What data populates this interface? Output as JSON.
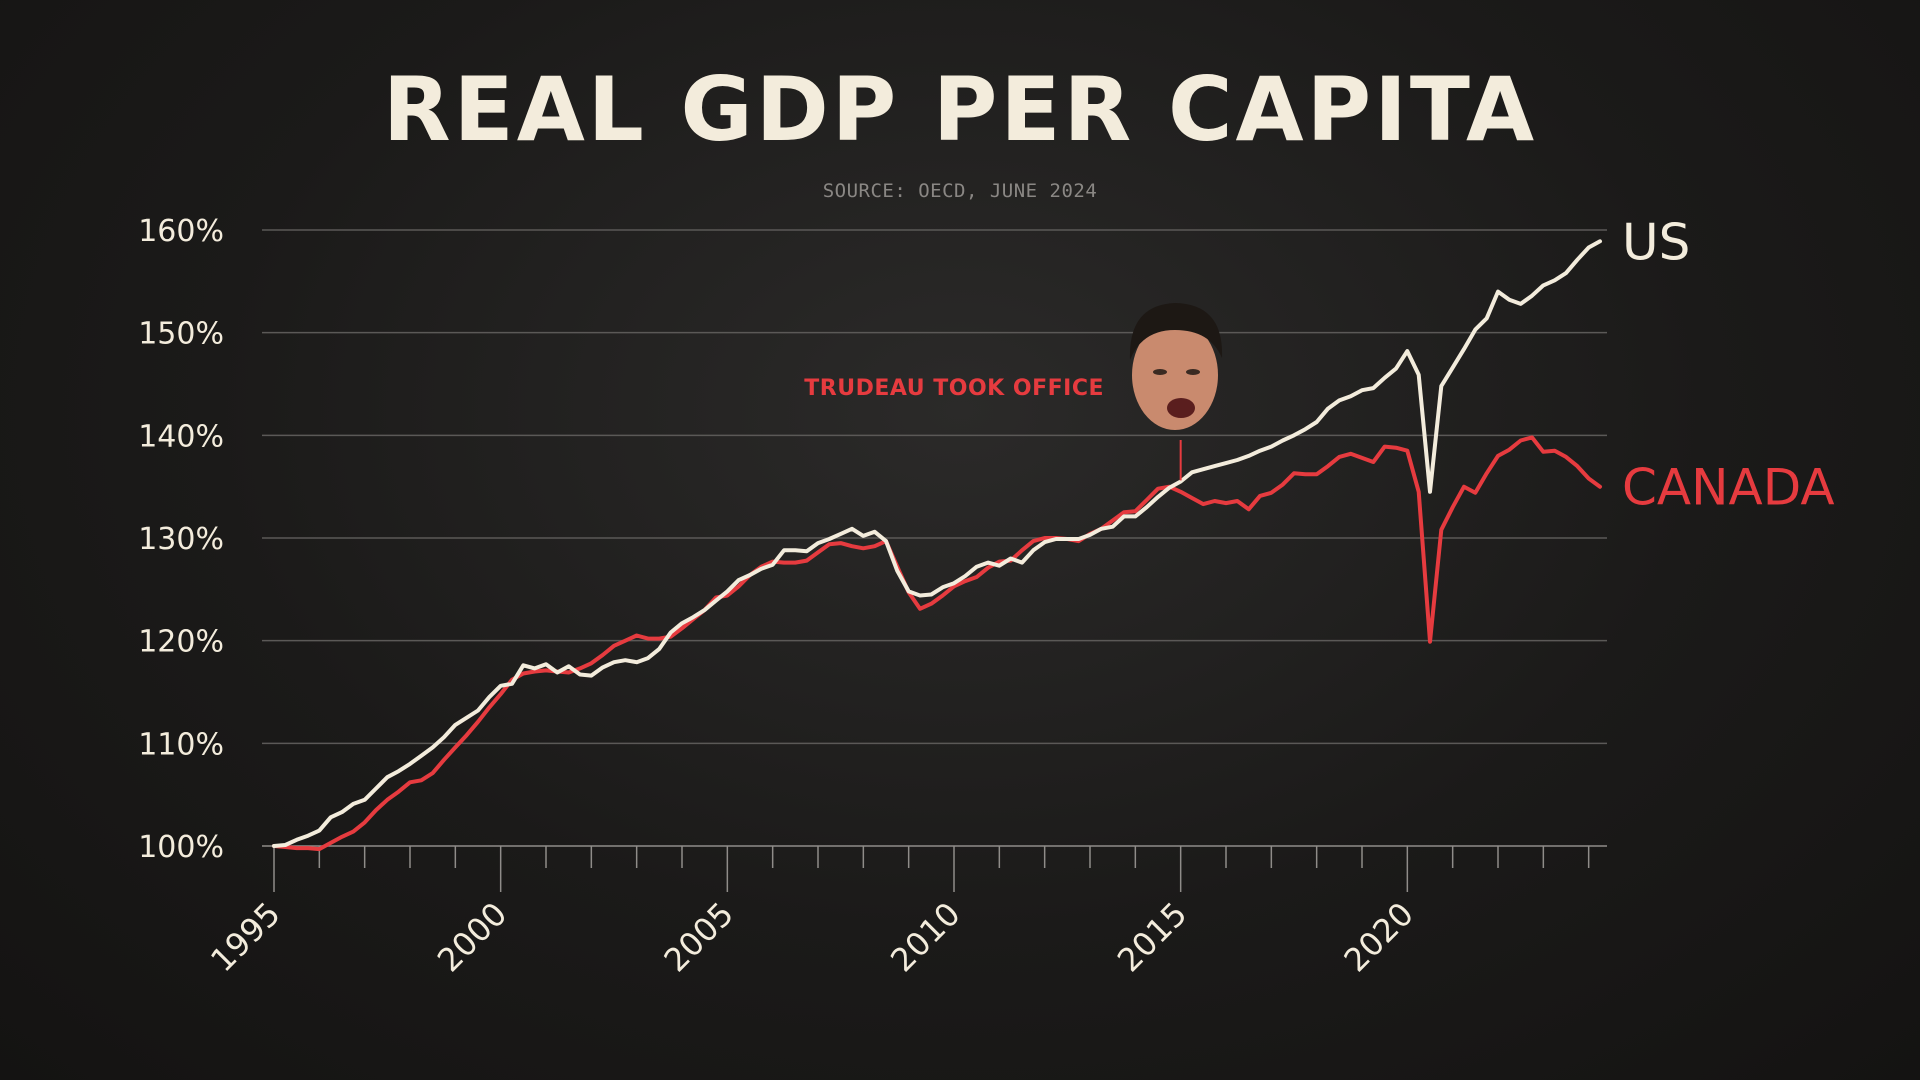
{
  "chart_data": {
    "type": "line",
    "title": "REAL GDP PER CAPITA",
    "subtitle": "SOURCE: OECD, JUNE 2024",
    "xlabel": "",
    "ylabel": "",
    "xlim": [
      1995,
      2024.25
    ],
    "ylim": [
      100,
      160
    ],
    "y_ticks": [
      100,
      110,
      120,
      130,
      140,
      150,
      160
    ],
    "y_tick_labels": [
      "100%",
      "110%",
      "120%",
      "130%",
      "140%",
      "150%",
      "160%"
    ],
    "x_ticks": [
      1995,
      2000,
      2005,
      2010,
      2015,
      2020
    ],
    "x_tick_labels": [
      "1995",
      "2000",
      "2005",
      "2010",
      "2015",
      "2020"
    ],
    "grid": true,
    "legend": "right, labels at line ends",
    "annotation": {
      "text": "TRUDEAU TOOK OFFICE",
      "x": 2015.0,
      "y": 136.0,
      "color": "#e63b3f"
    },
    "series": [
      {
        "name": "US",
        "color": "#f3ecdc",
        "points": [
          [
            1995.0,
            100.0
          ],
          [
            1995.25,
            100.1
          ],
          [
            1995.5,
            100.6
          ],
          [
            1995.75,
            101.0
          ],
          [
            1996.0,
            101.5
          ],
          [
            1996.25,
            102.8
          ],
          [
            1996.5,
            103.3
          ],
          [
            1996.75,
            104.1
          ],
          [
            1997.0,
            104.5
          ],
          [
            1997.25,
            105.6
          ],
          [
            1997.5,
            106.7
          ],
          [
            1997.75,
            107.3
          ],
          [
            1998.0,
            108.0
          ],
          [
            1998.25,
            108.8
          ],
          [
            1998.5,
            109.6
          ],
          [
            1998.75,
            110.6
          ],
          [
            1999.0,
            111.8
          ],
          [
            1999.25,
            112.5
          ],
          [
            1999.5,
            113.2
          ],
          [
            1999.75,
            114.5
          ],
          [
            2000.0,
            115.6
          ],
          [
            2000.25,
            115.8
          ],
          [
            2000.5,
            117.6
          ],
          [
            2000.75,
            117.3
          ],
          [
            2001.0,
            117.7
          ],
          [
            2001.25,
            116.9
          ],
          [
            2001.5,
            117.5
          ],
          [
            2001.75,
            116.7
          ],
          [
            2002.0,
            116.6
          ],
          [
            2002.25,
            117.4
          ],
          [
            2002.5,
            117.9
          ],
          [
            2002.75,
            118.1
          ],
          [
            2003.0,
            117.9
          ],
          [
            2003.25,
            118.3
          ],
          [
            2003.5,
            119.2
          ],
          [
            2003.75,
            120.8
          ],
          [
            2004.0,
            121.7
          ],
          [
            2004.25,
            122.3
          ],
          [
            2004.5,
            123.0
          ],
          [
            2004.75,
            123.9
          ],
          [
            2005.0,
            124.8
          ],
          [
            2005.25,
            125.9
          ],
          [
            2005.5,
            126.4
          ],
          [
            2005.75,
            127.0
          ],
          [
            2006.0,
            127.4
          ],
          [
            2006.25,
            128.8
          ],
          [
            2006.5,
            128.8
          ],
          [
            2006.75,
            128.7
          ],
          [
            2007.0,
            129.5
          ],
          [
            2007.25,
            129.9
          ],
          [
            2007.5,
            130.4
          ],
          [
            2007.75,
            130.9
          ],
          [
            2008.0,
            130.2
          ],
          [
            2008.25,
            130.6
          ],
          [
            2008.5,
            129.7
          ],
          [
            2008.75,
            126.8
          ],
          [
            2009.0,
            124.8
          ],
          [
            2009.25,
            124.4
          ],
          [
            2009.5,
            124.5
          ],
          [
            2009.75,
            125.2
          ],
          [
            2010.0,
            125.6
          ],
          [
            2010.25,
            126.3
          ],
          [
            2010.5,
            127.2
          ],
          [
            2010.75,
            127.6
          ],
          [
            2011.0,
            127.3
          ],
          [
            2011.25,
            128.0
          ],
          [
            2011.5,
            127.6
          ],
          [
            2011.75,
            128.8
          ],
          [
            2012.0,
            129.6
          ],
          [
            2012.25,
            129.9
          ],
          [
            2012.5,
            129.9
          ],
          [
            2012.75,
            129.9
          ],
          [
            2013.0,
            130.3
          ],
          [
            2013.25,
            130.9
          ],
          [
            2013.5,
            131.1
          ],
          [
            2013.75,
            132.1
          ],
          [
            2014.0,
            132.1
          ],
          [
            2014.25,
            133.0
          ],
          [
            2014.5,
            134.0
          ],
          [
            2014.75,
            134.9
          ],
          [
            2015.0,
            135.5
          ],
          [
            2015.25,
            136.4
          ],
          [
            2015.5,
            136.7
          ],
          [
            2015.75,
            137.0
          ],
          [
            2016.0,
            137.3
          ],
          [
            2016.25,
            137.6
          ],
          [
            2016.5,
            138.0
          ],
          [
            2016.75,
            138.5
          ],
          [
            2017.0,
            138.9
          ],
          [
            2017.25,
            139.5
          ],
          [
            2017.5,
            140.0
          ],
          [
            2017.75,
            140.6
          ],
          [
            2018.0,
            141.3
          ],
          [
            2018.25,
            142.6
          ],
          [
            2018.5,
            143.4
          ],
          [
            2018.75,
            143.8
          ],
          [
            2019.0,
            144.4
          ],
          [
            2019.25,
            144.6
          ],
          [
            2019.5,
            145.6
          ],
          [
            2019.75,
            146.5
          ],
          [
            2020.0,
            148.2
          ],
          [
            2020.25,
            145.9
          ],
          [
            2020.5,
            134.5
          ],
          [
            2020.75,
            144.8
          ],
          [
            2021.0,
            146.6
          ],
          [
            2021.25,
            148.4
          ],
          [
            2021.5,
            150.3
          ],
          [
            2021.75,
            151.4
          ],
          [
            2022.0,
            154.0
          ],
          [
            2022.25,
            153.2
          ],
          [
            2022.5,
            152.8
          ],
          [
            2022.75,
            153.6
          ],
          [
            2023.0,
            154.6
          ],
          [
            2023.25,
            155.1
          ],
          [
            2023.5,
            155.8
          ],
          [
            2023.75,
            157.1
          ],
          [
            2024.0,
            158.3
          ],
          [
            2024.25,
            158.9
          ]
        ]
      },
      {
        "name": "CANADA",
        "color": "#e63b3f",
        "points": [
          [
            1995.0,
            100.0
          ],
          [
            1995.25,
            99.9
          ],
          [
            1995.5,
            99.8
          ],
          [
            1995.75,
            99.8
          ],
          [
            1996.0,
            99.7
          ],
          [
            1996.25,
            100.3
          ],
          [
            1996.5,
            100.9
          ],
          [
            1996.75,
            101.4
          ],
          [
            1997.0,
            102.3
          ],
          [
            1997.25,
            103.5
          ],
          [
            1997.5,
            104.5
          ],
          [
            1997.75,
            105.3
          ],
          [
            1998.0,
            106.2
          ],
          [
            1998.25,
            106.4
          ],
          [
            1998.5,
            107.1
          ],
          [
            1998.75,
            108.4
          ],
          [
            1999.0,
            109.6
          ],
          [
            1999.25,
            110.8
          ],
          [
            1999.5,
            112.1
          ],
          [
            1999.75,
            113.5
          ],
          [
            2000.0,
            114.8
          ],
          [
            2000.25,
            116.2
          ],
          [
            2000.5,
            116.8
          ],
          [
            2000.75,
            117.0
          ],
          [
            2001.0,
            117.1
          ],
          [
            2001.25,
            117.0
          ],
          [
            2001.5,
            116.9
          ],
          [
            2001.75,
            117.3
          ],
          [
            2002.0,
            117.8
          ],
          [
            2002.25,
            118.6
          ],
          [
            2002.5,
            119.5
          ],
          [
            2002.75,
            120.0
          ],
          [
            2003.0,
            120.5
          ],
          [
            2003.25,
            120.2
          ],
          [
            2003.5,
            120.2
          ],
          [
            2003.75,
            120.4
          ],
          [
            2004.0,
            121.2
          ],
          [
            2004.25,
            122.1
          ],
          [
            2004.5,
            123.0
          ],
          [
            2004.75,
            124.2
          ],
          [
            2005.0,
            124.4
          ],
          [
            2005.25,
            125.3
          ],
          [
            2005.5,
            126.4
          ],
          [
            2005.75,
            127.2
          ],
          [
            2006.0,
            127.7
          ],
          [
            2006.25,
            127.6
          ],
          [
            2006.5,
            127.6
          ],
          [
            2006.75,
            127.8
          ],
          [
            2007.0,
            128.6
          ],
          [
            2007.25,
            129.4
          ],
          [
            2007.5,
            129.5
          ],
          [
            2007.75,
            129.2
          ],
          [
            2008.0,
            129.0
          ],
          [
            2008.25,
            129.2
          ],
          [
            2008.5,
            129.7
          ],
          [
            2008.75,
            127.2
          ],
          [
            2009.0,
            124.7
          ],
          [
            2009.25,
            123.1
          ],
          [
            2009.5,
            123.6
          ],
          [
            2009.75,
            124.4
          ],
          [
            2010.0,
            125.3
          ],
          [
            2010.25,
            125.8
          ],
          [
            2010.5,
            126.2
          ],
          [
            2010.75,
            127.1
          ],
          [
            2011.0,
            127.7
          ],
          [
            2011.25,
            127.8
          ],
          [
            2011.5,
            128.8
          ],
          [
            2011.75,
            129.7
          ],
          [
            2012.0,
            130.0
          ],
          [
            2012.25,
            130.0
          ],
          [
            2012.5,
            129.9
          ],
          [
            2012.75,
            129.7
          ],
          [
            2013.0,
            130.4
          ],
          [
            2013.25,
            130.9
          ],
          [
            2013.5,
            131.7
          ],
          [
            2013.75,
            132.5
          ],
          [
            2014.0,
            132.6
          ],
          [
            2014.25,
            133.7
          ],
          [
            2014.5,
            134.8
          ],
          [
            2014.75,
            135.0
          ],
          [
            2015.0,
            134.5
          ],
          [
            2015.25,
            133.9
          ],
          [
            2015.5,
            133.3
          ],
          [
            2015.75,
            133.6
          ],
          [
            2016.0,
            133.4
          ],
          [
            2016.25,
            133.6
          ],
          [
            2016.5,
            132.8
          ],
          [
            2016.75,
            134.1
          ],
          [
            2017.0,
            134.4
          ],
          [
            2017.25,
            135.2
          ],
          [
            2017.5,
            136.3
          ],
          [
            2017.75,
            136.2
          ],
          [
            2018.0,
            136.2
          ],
          [
            2018.25,
            137.0
          ],
          [
            2018.5,
            137.9
          ],
          [
            2018.75,
            138.2
          ],
          [
            2019.0,
            137.8
          ],
          [
            2019.25,
            137.4
          ],
          [
            2019.5,
            138.9
          ],
          [
            2019.75,
            138.8
          ],
          [
            2020.0,
            138.5
          ],
          [
            2020.25,
            134.5
          ],
          [
            2020.5,
            119.9
          ],
          [
            2020.75,
            130.8
          ],
          [
            2021.0,
            133.0
          ],
          [
            2021.25,
            135.0
          ],
          [
            2021.5,
            134.4
          ],
          [
            2021.75,
            136.3
          ],
          [
            2022.0,
            138.0
          ],
          [
            2022.25,
            138.6
          ],
          [
            2022.5,
            139.5
          ],
          [
            2022.75,
            139.8
          ],
          [
            2023.0,
            138.4
          ],
          [
            2023.25,
            138.5
          ],
          [
            2023.5,
            137.9
          ],
          [
            2023.75,
            137.0
          ],
          [
            2024.0,
            135.8
          ],
          [
            2024.25,
            135.0
          ]
        ]
      }
    ]
  }
}
